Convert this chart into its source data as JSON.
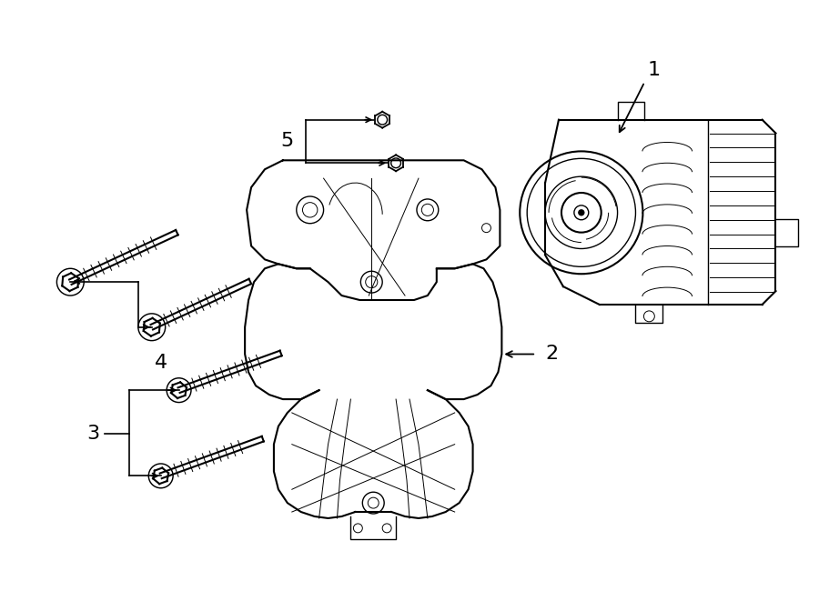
{
  "background_color": "#ffffff",
  "line_color": "#000000",
  "fig_width": 9.0,
  "fig_height": 6.61,
  "dpi": 100,
  "label_fontsize": 16,
  "arrow_color": "#000000"
}
